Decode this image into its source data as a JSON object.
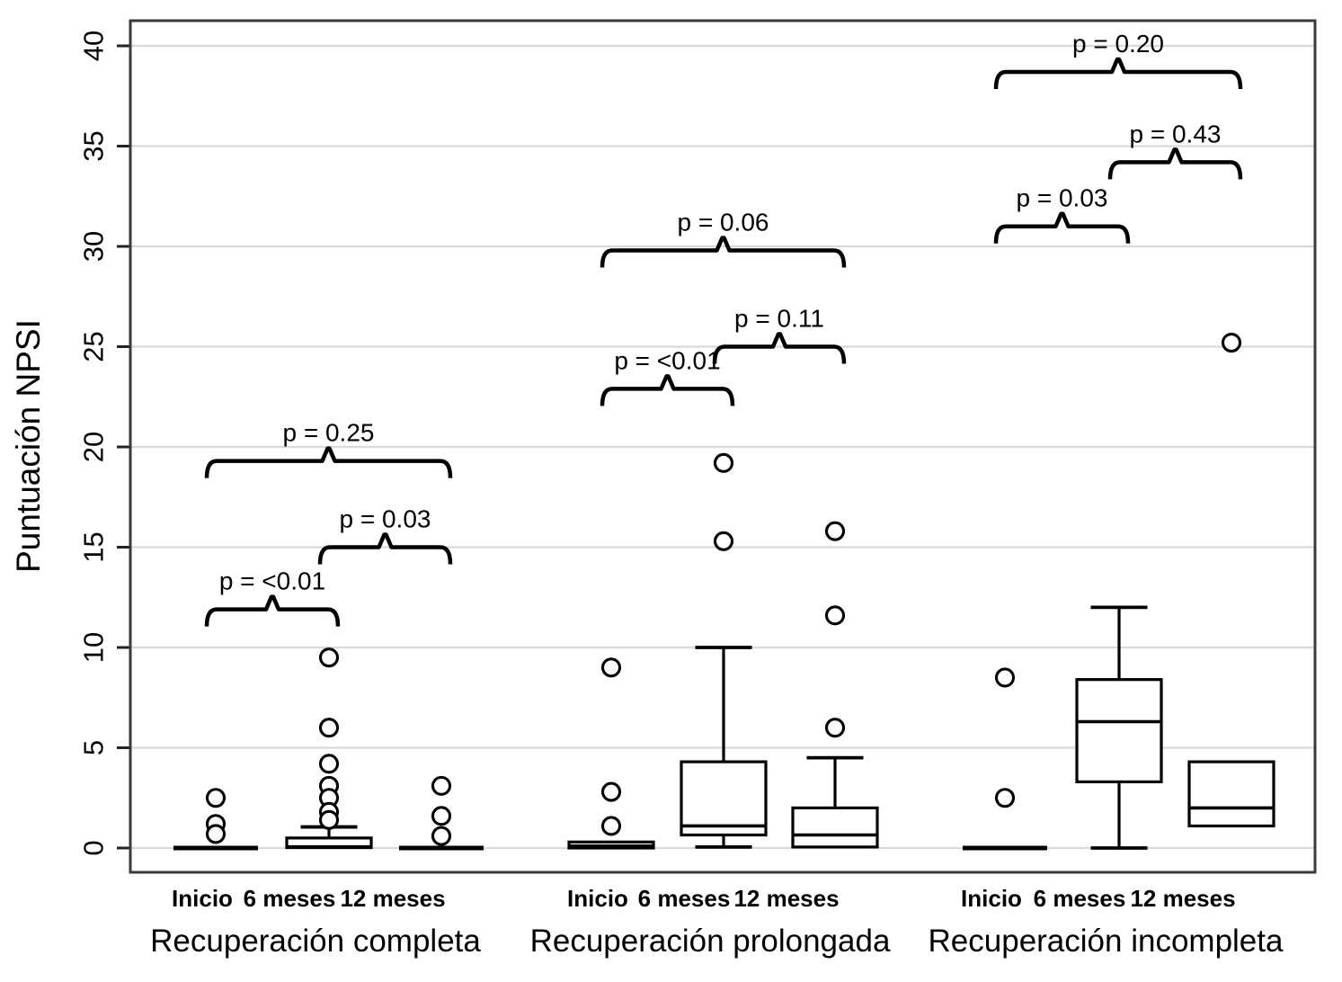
{
  "chart_data": {
    "type": "boxplot",
    "title": "",
    "ylabel": "Puntuación NPSI",
    "xlabel": "",
    "ylim": [
      -1.2,
      41.2
    ],
    "yticks": [
      0,
      5,
      10,
      15,
      20,
      25,
      30,
      35,
      40
    ],
    "grid": true,
    "grid_color": "#d9d9d9",
    "line_color": "#000000",
    "timepoints": [
      "Inicio",
      "6 meses",
      "12 meses"
    ],
    "groups": [
      {
        "label": "Recuperación completa",
        "boxes": [
          {
            "timepoint": "Inicio",
            "collapsed": true,
            "median": 0,
            "outliers": [
              2.5,
              1.2,
              0.7
            ]
          },
          {
            "timepoint": "6 meses",
            "q1": 0.02,
            "median": 0.06,
            "q3": 0.5,
            "whisker_high": 1.05,
            "whisker_low": null,
            "outliers": [
              9.5,
              6.0,
              4.2,
              3.1,
              2.5,
              1.8,
              1.4
            ]
          },
          {
            "timepoint": "12 meses",
            "collapsed": true,
            "median": 0,
            "outliers": [
              3.1,
              1.6,
              0.6
            ]
          }
        ],
        "comparisons": [
          {
            "label": "p = <0.01",
            "between": [
              0,
              1
            ],
            "height": 11.9
          },
          {
            "label": "p = 0.03",
            "between": [
              1,
              2
            ],
            "height": 15.0
          },
          {
            "label": "p = 0.25",
            "between": [
              0,
              2
            ],
            "height": 19.3
          }
        ]
      },
      {
        "label": "Recuperación prolongada",
        "boxes": [
          {
            "timepoint": "Inicio",
            "q1": 0,
            "median": 0.1,
            "q3": 0.3,
            "whisker_high": null,
            "whisker_low": null,
            "outliers": [
              9.0,
              2.8,
              1.1
            ]
          },
          {
            "timepoint": "6 meses",
            "q1": 0.65,
            "median": 1.1,
            "q3": 4.3,
            "whisker_high": 10.0,
            "whisker_low": 0.05,
            "outliers": [
              19.2,
              15.3
            ]
          },
          {
            "timepoint": "12 meses",
            "q1": 0.05,
            "median": 0.65,
            "q3": 2.0,
            "whisker_high": 4.5,
            "whisker_low": null,
            "outliers": [
              15.8,
              11.6,
              6.0
            ]
          }
        ],
        "comparisons": [
          {
            "label": "p = <0.01",
            "between": [
              0,
              1
            ],
            "height": 22.9
          },
          {
            "label": "p = 0.11",
            "between": [
              1,
              2
            ],
            "height": 25.0
          },
          {
            "label": "p = 0.06",
            "between": [
              0,
              2
            ],
            "height": 29.8
          }
        ]
      },
      {
        "label": "Recuperación incompleta",
        "boxes": [
          {
            "timepoint": "Inicio",
            "collapsed": true,
            "median": 0,
            "outliers": [
              8.5,
              2.5
            ]
          },
          {
            "timepoint": "6 meses",
            "q1": 3.3,
            "median": 6.3,
            "q3": 8.4,
            "whisker_high": 12.0,
            "whisker_low": 0.0,
            "outliers": []
          },
          {
            "timepoint": "12 meses",
            "q1": 1.1,
            "median": 2.0,
            "q3": 4.3,
            "whisker_high": null,
            "whisker_low": null,
            "outliers": [
              25.2
            ]
          }
        ],
        "comparisons": [
          {
            "label": "p = 0.03",
            "between": [
              0,
              1
            ],
            "height": 31.0
          },
          {
            "label": "p = 0.43",
            "between": [
              1,
              2
            ],
            "height": 34.2
          },
          {
            "label": "p = 0.20",
            "between": [
              0,
              2
            ],
            "height": 38.7
          }
        ]
      }
    ]
  }
}
